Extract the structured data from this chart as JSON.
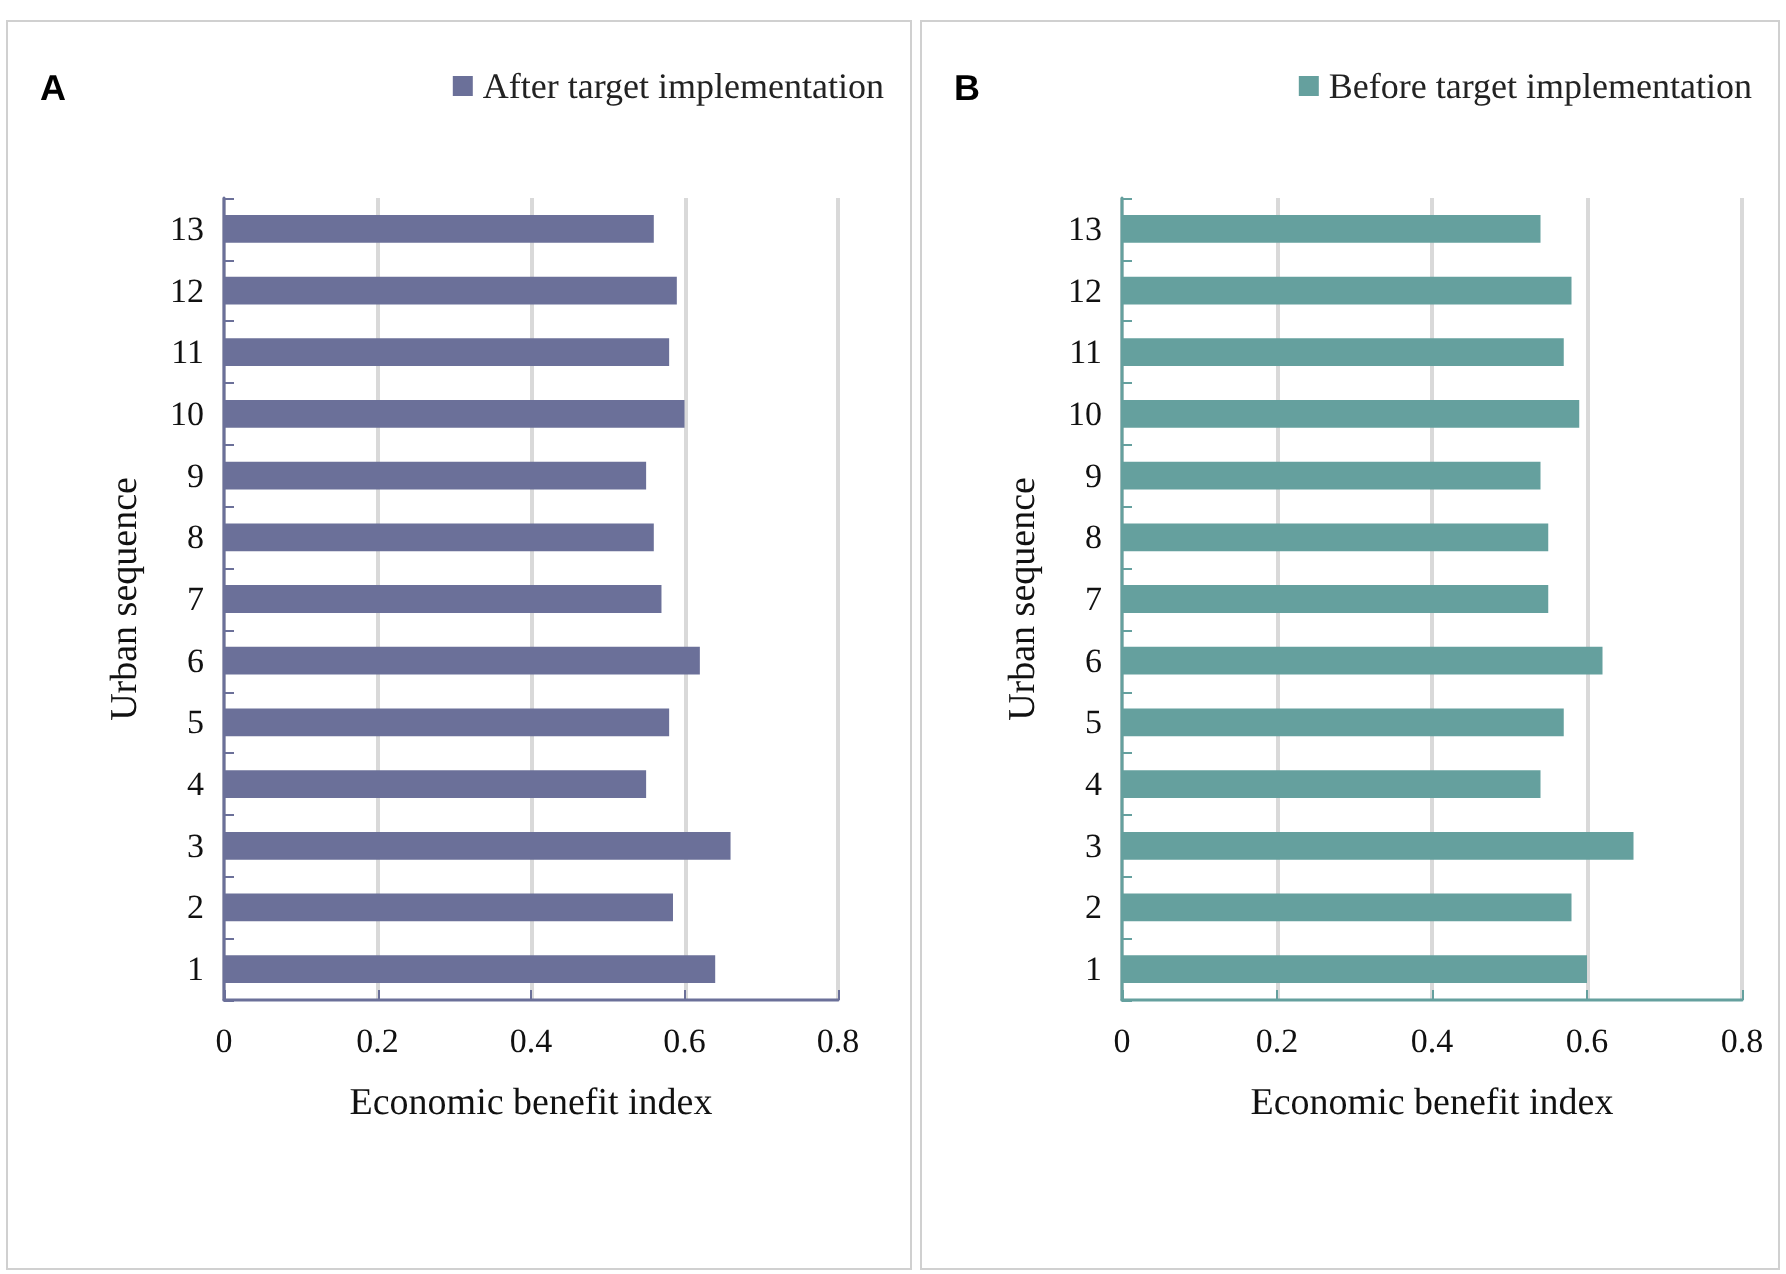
{
  "chart_data": [
    {
      "type": "bar",
      "orientation": "horizontal",
      "annotations": [
        "A"
      ],
      "xlabel": "Economic benefit index",
      "ylabel": "Urban sequence",
      "categories": [
        "13",
        "12",
        "11",
        "10",
        "9",
        "8",
        "7",
        "6",
        "5",
        "4",
        "3",
        "2",
        "1"
      ],
      "series": [
        {
          "name": "After target implementation",
          "color": "#6b7099",
          "values": [
            0.56,
            0.59,
            0.58,
            0.6,
            0.55,
            0.56,
            0.57,
            0.62,
            0.58,
            0.55,
            0.66,
            0.585,
            0.64
          ]
        }
      ],
      "xlim": [
        0,
        0.8
      ],
      "xticks": [
        0,
        0.2,
        0.4,
        0.6,
        0.8
      ],
      "grid": "x",
      "legend": "top right"
    },
    {
      "type": "bar",
      "orientation": "horizontal",
      "annotations": [
        "B"
      ],
      "xlabel": "Economic benefit index",
      "ylabel": "Urban sequence",
      "categories": [
        "13",
        "12",
        "11",
        "10",
        "9",
        "8",
        "7",
        "6",
        "5",
        "4",
        "3",
        "2",
        "1"
      ],
      "series": [
        {
          "name": "Before target implementation",
          "color": "#65a09e",
          "values": [
            0.54,
            0.58,
            0.57,
            0.59,
            0.54,
            0.55,
            0.55,
            0.62,
            0.57,
            0.54,
            0.66,
            0.58,
            0.6
          ]
        }
      ],
      "xlim": [
        0,
        0.8
      ],
      "xticks": [
        0,
        0.2,
        0.4,
        0.6,
        0.8
      ],
      "grid": "x",
      "legend": "top right"
    }
  ]
}
